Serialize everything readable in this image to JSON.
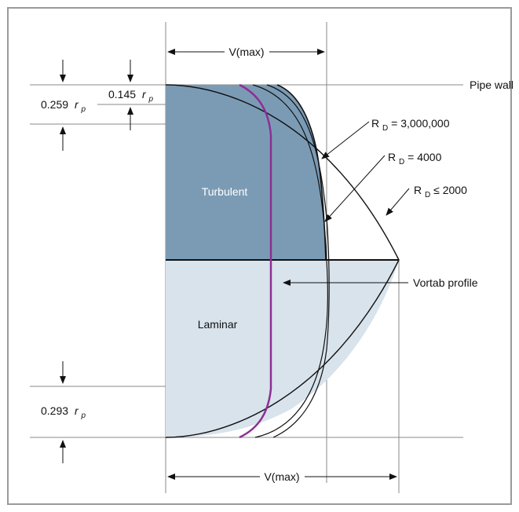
{
  "frame_color": "#9a9a9a",
  "colors": {
    "turbulent_fill": "#7b9bb5",
    "laminar_fill": "#d8e3ec",
    "vortab_line": "#8e2e94",
    "line": "#111111",
    "guide": "#8a8a8a"
  },
  "labels": {
    "vmax_top": "V(max)",
    "vmax_bottom": "V(max)",
    "pipe_wall": "Pipe wall",
    "rd_3m_prefix": "R",
    "rd_3m_sub": "D",
    "rd_3m_suffix": " = 3,000,000",
    "rd_4000_prefix": "R",
    "rd_4000_sub": "D",
    "rd_4000_suffix": " = 4000",
    "rd_2000_prefix": "R",
    "rd_2000_sub": "D",
    "rd_2000_suffix": "≤ 2000",
    "vortab_profile": "Vortab profile",
    "turbulent": "Turbulent",
    "laminar": "Laminar",
    "dim_0259_value": "0.259",
    "dim_0145_value": "0.145",
    "dim_0293_value": "0.293",
    "r_symbol": "r",
    "r_sub": "p"
  }
}
